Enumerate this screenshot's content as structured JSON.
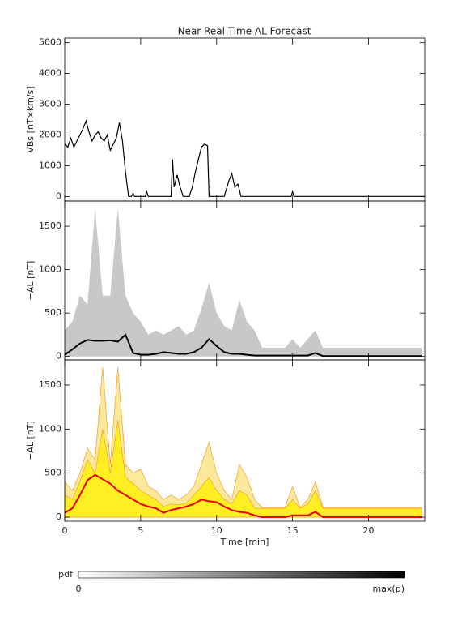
{
  "chart_data": [
    {
      "type": "line",
      "ylabel": "VBs [nT×km/s]",
      "title": "Near Real Time AL Forecast",
      "xlim": [
        0,
        23.7
      ],
      "xticks": [
        0,
        5,
        10,
        15,
        20
      ],
      "ylim": [
        -150,
        5150
      ],
      "yticks": [
        0,
        1000,
        2000,
        3000,
        4000,
        5000
      ],
      "x": [
        0,
        0.2,
        0.4,
        0.6,
        0.8,
        1.0,
        1.2,
        1.4,
        1.6,
        1.8,
        2.0,
        2.2,
        2.4,
        2.6,
        2.8,
        3.0,
        3.2,
        3.4,
        3.6,
        3.8,
        4.0,
        4.2,
        4.4,
        4.5,
        4.6,
        5.3,
        5.4,
        5.5,
        7.0,
        7.1,
        7.2,
        7.4,
        7.6,
        7.8,
        8.2,
        8.4,
        8.6,
        8.8,
        9.0,
        9.2,
        9.4,
        9.5,
        10.5,
        10.8,
        11.0,
        11.2,
        11.4,
        11.6,
        14.9,
        15.0,
        15.1,
        23.7
      ],
      "series": [
        {
          "color": "#000000",
          "values": [
            1700,
            1600,
            1900,
            1600,
            1800,
            2000,
            2200,
            2450,
            2100,
            1800,
            2000,
            2100,
            1900,
            1800,
            2000,
            1500,
            1700,
            1900,
            2400,
            1800,
            800,
            0,
            0,
            100,
            0,
            0,
            150,
            0,
            0,
            1200,
            300,
            700,
            300,
            0,
            0,
            300,
            800,
            1200,
            1600,
            1700,
            1650,
            0,
            0,
            500,
            750,
            300,
            400,
            0,
            0,
            150,
            0,
            0
          ]
        }
      ]
    },
    {
      "type": "area",
      "ylabel": "−AL [nT]",
      "xlim": [
        0,
        23.7
      ],
      "xticks": [
        0,
        5,
        10,
        15,
        20
      ],
      "ylim": [
        -40,
        1790
      ],
      "yticks": [
        0,
        500,
        1000,
        1500
      ],
      "x": [
        0,
        0.5,
        1,
        1.5,
        2,
        2.5,
        3,
        3.5,
        4,
        4.5,
        5,
        5.5,
        6,
        6.5,
        7,
        7.5,
        8,
        8.5,
        9,
        9.5,
        10,
        10.5,
        11,
        11.5,
        12,
        12.5,
        13,
        13.5,
        14,
        14.5,
        15,
        15.5,
        16,
        16.5,
        17,
        17.5,
        18,
        18.5,
        19,
        19.5,
        20,
        20.5,
        21,
        21.5,
        22,
        22.5,
        23,
        23.5
      ],
      "series": [
        {
          "color": "#c8c8c8",
          "fill": true,
          "values": [
            300,
            400,
            700,
            600,
            1700,
            700,
            700,
            1700,
            700,
            500,
            400,
            250,
            300,
            250,
            300,
            350,
            250,
            300,
            550,
            850,
            500,
            350,
            300,
            650,
            400,
            300,
            100,
            100,
            100,
            100,
            200,
            100,
            200,
            300,
            100,
            100,
            100,
            100,
            100,
            100,
            100,
            100,
            100,
            100,
            100,
            100,
            100,
            100
          ]
        },
        {
          "color": "#000000",
          "fill": false,
          "values": [
            20,
            80,
            150,
            190,
            180,
            180,
            185,
            170,
            250,
            40,
            20,
            20,
            30,
            50,
            40,
            30,
            30,
            50,
            100,
            200,
            120,
            50,
            30,
            30,
            20,
            10,
            10,
            10,
            10,
            10,
            10,
            10,
            10,
            40,
            5,
            5,
            5,
            5,
            5,
            5,
            5,
            5,
            5,
            5,
            5,
            5,
            5,
            5
          ]
        }
      ]
    },
    {
      "type": "area",
      "ylabel": "−AL [nT]",
      "xlabel": "Time [min]",
      "xlim": [
        0,
        23.7
      ],
      "xticks": [
        0,
        5,
        10,
        15,
        20
      ],
      "ylim": [
        -46,
        1785
      ],
      "yticks": [
        0,
        500,
        1000,
        1500
      ],
      "x": [
        0,
        0.5,
        1,
        1.5,
        2,
        2.5,
        3,
        3.5,
        4,
        4.5,
        5,
        5.5,
        6,
        6.5,
        7,
        7.5,
        8,
        8.5,
        9,
        9.5,
        10,
        10.5,
        11,
        11.5,
        12,
        12.5,
        13,
        13.5,
        14,
        14.5,
        15,
        15.5,
        16,
        16.5,
        17,
        17.5,
        18,
        18.5,
        19,
        19.5,
        20,
        20.5,
        21,
        21.5,
        22,
        22.5,
        23,
        23.5
      ],
      "series": [
        {
          "color": "#fbe89a",
          "fill": true,
          "values": [
            400,
            300,
            500,
            780,
            650,
            1700,
            600,
            1700,
            600,
            500,
            550,
            350,
            300,
            200,
            250,
            200,
            250,
            350,
            600,
            850,
            500,
            300,
            200,
            600,
            450,
            200,
            110,
            110,
            110,
            110,
            350,
            110,
            200,
            400,
            110,
            110,
            110,
            110,
            110,
            110,
            110,
            110,
            110,
            110,
            110,
            110,
            110,
            110
          ]
        },
        {
          "color": "#ffee22",
          "fill": true,
          "values": [
            250,
            200,
            400,
            650,
            500,
            1000,
            500,
            1100,
            450,
            380,
            300,
            250,
            200,
            120,
            150,
            140,
            160,
            250,
            350,
            450,
            300,
            200,
            150,
            300,
            250,
            100,
            100,
            100,
            100,
            100,
            200,
            100,
            150,
            300,
            100,
            100,
            100,
            100,
            100,
            100,
            100,
            100,
            100,
            100,
            100,
            100,
            100,
            100
          ]
        },
        {
          "color": "#ee0000",
          "fill": false,
          "values": [
            50,
            100,
            250,
            420,
            480,
            430,
            380,
            300,
            250,
            200,
            150,
            120,
            100,
            50,
            80,
            100,
            120,
            150,
            200,
            180,
            170,
            120,
            80,
            60,
            50,
            20,
            0,
            0,
            0,
            0,
            20,
            20,
            20,
            60,
            0,
            0,
            0,
            0,
            0,
            0,
            0,
            0,
            0,
            0,
            0,
            0,
            0,
            0
          ]
        }
      ]
    }
  ],
  "colorbar": {
    "label": "pdf",
    "min_label": "0",
    "max_label": "max(p)"
  }
}
